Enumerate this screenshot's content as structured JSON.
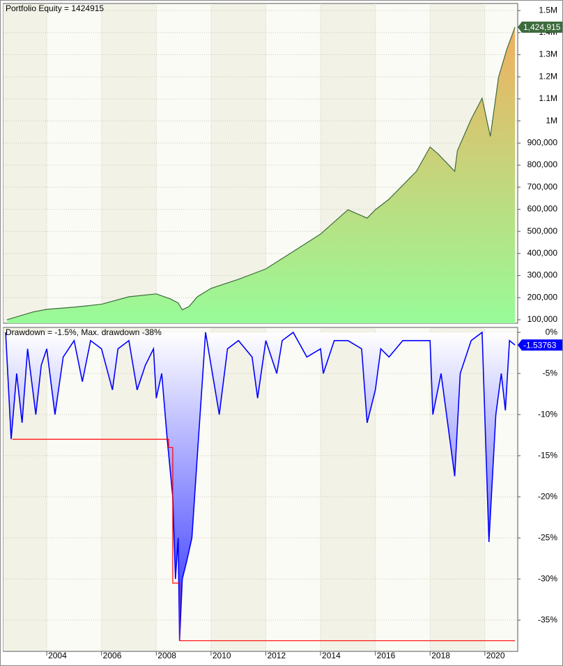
{
  "chart_data": [
    {
      "type": "area",
      "title": "Portfolio Equity = 1424915",
      "x": [
        2002.55,
        2003.5,
        2004,
        2005,
        2006,
        2007,
        2008,
        2008.5,
        2008.8,
        2008.95,
        2009.2,
        2009.5,
        2010,
        2011,
        2012,
        2013,
        2014,
        2015,
        2015.7,
        2016,
        2016.5,
        2017,
        2017.5,
        2018,
        2018.3,
        2018.9,
        2019,
        2019.5,
        2019.9,
        2020.2,
        2020.5,
        2020.8,
        2021.1
      ],
      "series": [
        {
          "color": "#3d6b3d",
          "values": [
            100000,
            135000,
            147000,
            157000,
            170000,
            204000,
            217000,
            195000,
            176000,
            145000,
            160000,
            204000,
            242000,
            283000,
            330000,
            409000,
            488000,
            598000,
            560000,
            598000,
            646000,
            709000,
            772000,
            882000,
            850000,
            772000,
            866000,
            1008000,
            1103000,
            930000,
            1198000,
            1324000,
            1424915
          ]
        }
      ],
      "fill_colors": [
        "#98fb98",
        "#f0b060"
      ],
      "last_marker": {
        "value": 1424915,
        "label": "1,424,915"
      },
      "marker_color": "#3d6b3d",
      "xlim": [
        2002.42,
        2021.2
      ],
      "ylim": [
        84000,
        1532000
      ],
      "yticks": [
        {
          "value": 100000,
          "label": "100,000"
        },
        {
          "value": 200000,
          "label": "200,000"
        },
        {
          "value": 300000,
          "label": "300,000"
        },
        {
          "value": 400000,
          "label": "400,000"
        },
        {
          "value": 500000,
          "label": "500,000"
        },
        {
          "value": 600000,
          "label": "600,000"
        },
        {
          "value": 700000,
          "label": "700,000"
        },
        {
          "value": 800000,
          "label": "800,000"
        },
        {
          "value": 900000,
          "label": "900,000"
        },
        {
          "value": 1000000,
          "label": "1M"
        },
        {
          "value": 1100000,
          "label": "1.1M"
        },
        {
          "value": 1200000,
          "label": "1.2M"
        },
        {
          "value": 1300000,
          "label": "1.3M"
        },
        {
          "value": 1400000,
          "label": "1.4M"
        },
        {
          "value": 1500000,
          "label": "1.5M"
        }
      ],
      "grid": true
    },
    {
      "type": "area",
      "title": "Drawdown = -1.5%, Max. drawdown -38%",
      "x": [
        2002.5,
        2002.7,
        2002.9,
        2003.1,
        2003.3,
        2003.6,
        2003.8,
        2004,
        2004.3,
        2004.6,
        2005,
        2005.3,
        2005.6,
        2006,
        2006.4,
        2006.6,
        2007,
        2007.3,
        2007.6,
        2007.9,
        2008,
        2008.2,
        2008.4,
        2008.6,
        2008.7,
        2008.8,
        2008.85,
        2008.95,
        2009.1,
        2009.3,
        2009.5,
        2009.7,
        2009.8,
        2010.3,
        2010.6,
        2011,
        2011.5,
        2011.7,
        2012,
        2012.4,
        2012.6,
        2013,
        2013.5,
        2014,
        2014.1,
        2014.5,
        2015,
        2015.5,
        2015.7,
        2016,
        2016.2,
        2016.5,
        2017,
        2017.5,
        2018,
        2018.1,
        2018.4,
        2018.9,
        2019.1,
        2019.5,
        2019.9,
        2020.15,
        2020.4,
        2020.6,
        2020.75,
        2020.9,
        2021.1
      ],
      "series": [
        {
          "color": "#0000ff",
          "values": [
            0,
            -13,
            -5,
            -11,
            -2,
            -10,
            -4,
            -2,
            -10,
            -3,
            -1,
            -6,
            -1,
            -2,
            -7,
            -2,
            -1,
            -7,
            -4,
            -2,
            -8,
            -5,
            -13,
            -20,
            -30,
            -25,
            -37.5,
            -30,
            -28,
            -25,
            -15,
            -5,
            0,
            -10,
            -2,
            -1,
            -3,
            -8,
            -1,
            -5,
            -1,
            0,
            -3,
            -2,
            -5,
            -1,
            -1,
            -2,
            -11,
            -7,
            -2,
            -3,
            -1,
            -1,
            -1,
            -10,
            -5,
            -17.5,
            -5,
            -1,
            0,
            -25.5,
            -10,
            -5,
            -9.5,
            -1,
            -1.53763
          ]
        },
        {
          "color": "#ff0000",
          "x": [
            2002.75,
            2008.45,
            2008.45,
            2008.6,
            2008.6,
            2008.85,
            2008.85,
            2021.1
          ],
          "values": [
            -13,
            -13,
            -14,
            -14,
            -30.5,
            -30.5,
            -37.5,
            -37.5
          ]
        }
      ],
      "fill_colors": [
        "#ffffff",
        "#2a2aff"
      ],
      "last_marker": -1.53763,
      "marker_color": "#0000ff",
      "xlim": [
        2002.42,
        2021.2
      ],
      "ylim": [
        -38.8,
        0.6
      ],
      "yticks": [
        {
          "value": 0,
          "label": "0%"
        },
        {
          "value": -5,
          "label": "-5%"
        },
        {
          "value": -10,
          "label": "-10%"
        },
        {
          "value": -15,
          "label": "-15%"
        },
        {
          "value": -20,
          "label": "-20%"
        },
        {
          "value": -25,
          "label": "-25%"
        },
        {
          "value": -30,
          "label": "-30%"
        },
        {
          "value": -35,
          "label": "-35%"
        }
      ],
      "xticks": [
        2004,
        2006,
        2008,
        2010,
        2012,
        2014,
        2016,
        2018,
        2020
      ],
      "grid": true
    }
  ]
}
